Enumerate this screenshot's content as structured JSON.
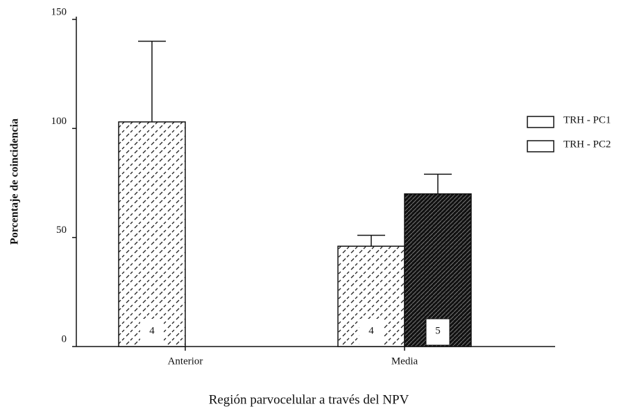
{
  "chart_data": {
    "type": "bar",
    "x_label": "Región parvocelular a través del NPV",
    "y_label": "Porcentaje de coincidencia",
    "categories": [
      "Anterior",
      "Media"
    ],
    "series": [
      {
        "name": "TRH - PC1",
        "color": "#ffffff",
        "values": [
          103,
          46
        ],
        "errors": [
          37,
          5
        ],
        "n": [
          4,
          4
        ]
      },
      {
        "name": "TRH - PC2",
        "color": "#000000",
        "values": [
          null,
          70
        ],
        "errors": [
          null,
          9
        ],
        "n": [
          null,
          5
        ]
      }
    ],
    "ylim": [
      0,
      150
    ],
    "yticks": [
      0,
      50,
      100,
      150
    ],
    "legend": "right"
  }
}
